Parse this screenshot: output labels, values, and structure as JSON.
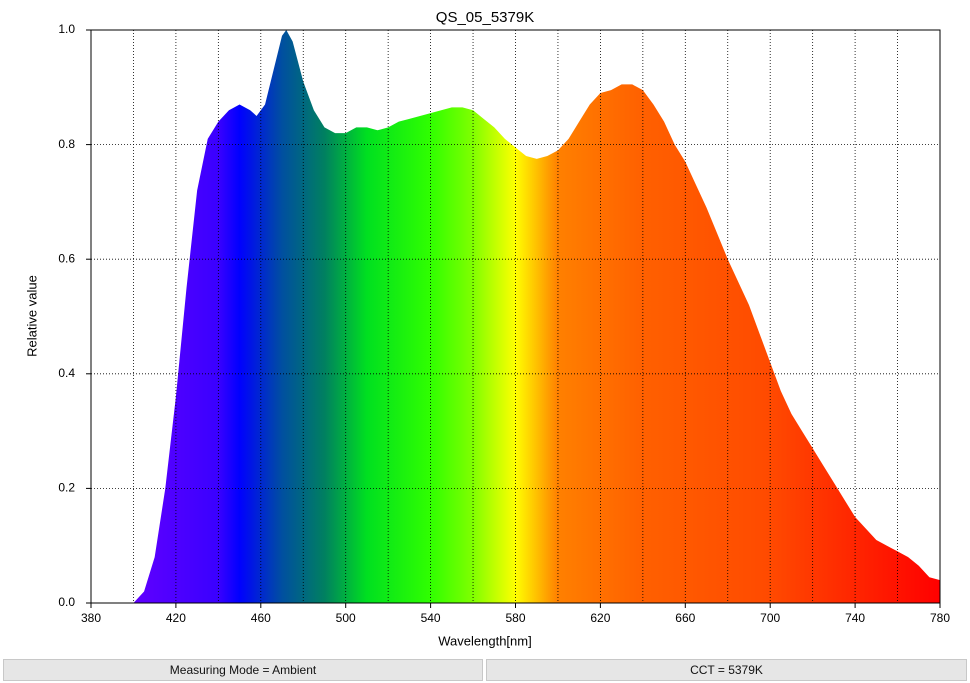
{
  "chart_data": {
    "type": "area",
    "title": "QS_05_5379K",
    "x_label": "Wavelength[nm]",
    "y_label": "Relative value",
    "x": [
      400,
      405,
      410,
      415,
      420,
      425,
      430,
      435,
      440,
      445,
      450,
      455,
      458,
      462,
      466,
      470,
      472,
      475,
      480,
      485,
      490,
      495,
      500,
      505,
      510,
      515,
      520,
      525,
      530,
      535,
      540,
      545,
      550,
      555,
      560,
      565,
      570,
      575,
      580,
      585,
      590,
      595,
      600,
      605,
      610,
      615,
      620,
      625,
      630,
      635,
      640,
      645,
      650,
      655,
      660,
      665,
      670,
      675,
      680,
      685,
      690,
      695,
      700,
      705,
      710,
      715,
      720,
      725,
      730,
      735,
      740,
      745,
      750,
      755,
      760,
      765,
      770,
      775,
      780
    ],
    "values": [
      0,
      0.02,
      0.08,
      0.2,
      0.36,
      0.55,
      0.72,
      0.81,
      0.84,
      0.86,
      0.87,
      0.86,
      0.85,
      0.87,
      0.93,
      0.99,
      1.0,
      0.98,
      0.91,
      0.86,
      0.83,
      0.82,
      0.82,
      0.83,
      0.83,
      0.825,
      0.83,
      0.84,
      0.845,
      0.85,
      0.855,
      0.86,
      0.865,
      0.865,
      0.86,
      0.845,
      0.83,
      0.81,
      0.795,
      0.78,
      0.775,
      0.78,
      0.79,
      0.81,
      0.84,
      0.87,
      0.89,
      0.895,
      0.905,
      0.905,
      0.895,
      0.87,
      0.84,
      0.8,
      0.77,
      0.73,
      0.69,
      0.645,
      0.6,
      0.56,
      0.52,
      0.47,
      0.42,
      0.37,
      0.33,
      0.3,
      0.27,
      0.24,
      0.21,
      0.18,
      0.15,
      0.13,
      0.11,
      0.1,
      0.09,
      0.08,
      0.065,
      0.045,
      0.04
    ],
    "fill_gradient": [
      {
        "x": 400,
        "color": "#6000ff"
      },
      {
        "x": 440,
        "color": "#3a00ff"
      },
      {
        "x": 450,
        "color": "#0000ff"
      },
      {
        "x": 470,
        "color": "#004fa0"
      },
      {
        "x": 490,
        "color": "#008060"
      },
      {
        "x": 510,
        "color": "#00e020"
      },
      {
        "x": 540,
        "color": "#30ff00"
      },
      {
        "x": 560,
        "color": "#80ff00"
      },
      {
        "x": 580,
        "color": "#ffff00"
      },
      {
        "x": 590,
        "color": "#ffc000"
      },
      {
        "x": 600,
        "color": "#ff8000"
      },
      {
        "x": 640,
        "color": "#ff6000"
      },
      {
        "x": 700,
        "color": "#ff4a00"
      },
      {
        "x": 780,
        "color": "#ff0000"
      }
    ],
    "xlim": [
      380,
      780
    ],
    "ylim": [
      0,
      1
    ],
    "xticks": [
      380,
      420,
      460,
      500,
      540,
      580,
      620,
      660,
      700,
      740,
      780
    ],
    "x_minor_ticks": [
      400,
      440,
      480,
      520,
      560,
      600,
      640,
      680,
      720,
      760
    ],
    "yticks": [
      {
        "value": 0,
        "label": "0.0"
      },
      0.2,
      0.4,
      0.6,
      0.8,
      {
        "value": 1,
        "label": "1.0"
      }
    ],
    "grid": true
  },
  "status_bar": {
    "fields": [
      "Measuring Mode = Ambient",
      "CCT = 5379K"
    ]
  }
}
